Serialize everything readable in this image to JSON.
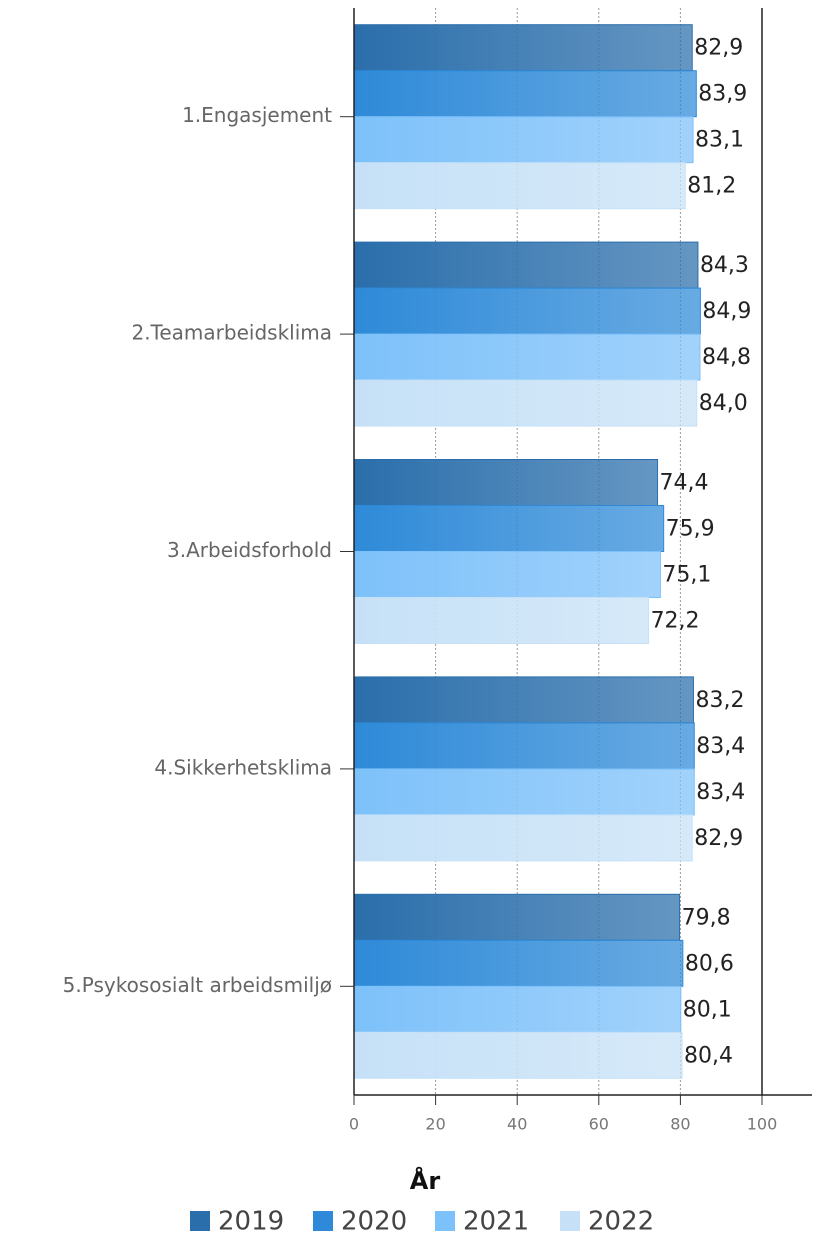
{
  "chart_data": {
    "type": "hbar",
    "categories": [
      "1.Engasjement",
      "2.Teamarbeidsklima",
      "3.Arbeidsforhold",
      "4.Sikkerhetsklima",
      "5.Psykososialt arbeidsmiljø"
    ],
    "series": [
      {
        "name": "2019",
        "color": "#2a6eab",
        "values": [
          82.9,
          84.3,
          74.4,
          83.2,
          79.8
        ],
        "value_labels": [
          "82,9",
          "84,3",
          "74,4",
          "83,2",
          "79,8"
        ]
      },
      {
        "name": "2020",
        "color": "#2e8ad8",
        "values": [
          83.9,
          84.9,
          75.9,
          83.4,
          80.6
        ],
        "value_labels": [
          "83,9",
          "84,9",
          "75,9",
          "83,4",
          "80,6"
        ]
      },
      {
        "name": "2021",
        "color": "#7dc1fa",
        "values": [
          83.1,
          84.8,
          75.1,
          83.4,
          80.1
        ],
        "value_labels": [
          "83,1",
          "84,8",
          "75,1",
          "83,4",
          "80,1"
        ]
      },
      {
        "name": "2022",
        "color": "#c6e1f7",
        "values": [
          81.2,
          84.0,
          72.2,
          82.9,
          80.4
        ],
        "value_labels": [
          "81,2",
          "84,0",
          "72,2",
          "82,9",
          "80,4"
        ]
      }
    ],
    "xlim": [
      0,
      100
    ],
    "xticks": [
      0,
      20,
      40,
      60,
      80,
      100
    ],
    "grid": true,
    "legend_title": "År"
  }
}
